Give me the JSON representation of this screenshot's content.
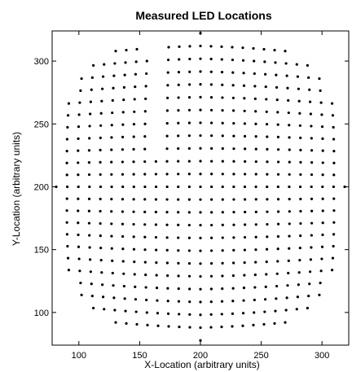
{
  "chart_data": {
    "type": "scatter",
    "title": "Measured LED Locations",
    "xlabel": "X-Location (arbitrary units)",
    "ylabel": "Y-Location (arbitrary units)",
    "xlim": [
      78,
      322
    ],
    "ylim": [
      74,
      324
    ],
    "xticks": [
      100,
      150,
      200,
      250,
      300
    ],
    "yticks": [
      100,
      150,
      200,
      250,
      300
    ],
    "grid": false,
    "legend": "none",
    "marker_color": "#000000",
    "description_of_points": "Grid of LED centroids forming a pillow/barrel-distorted square; columns spaced ~8.5 units, rows ~10 units; a small rectangular cluster of missing points near x=160..170, y=230..310.",
    "grid_model": {
      "center": [
        200,
        200
      ],
      "columns": 27,
      "rows": 25,
      "col_spacing": 8.6,
      "row_spacing": 10.0,
      "half_width": 116,
      "half_height": 124,
      "corner_rounding": 0.55,
      "gap": {
        "x": [
          156,
          172
        ],
        "y": [
          228,
          312
        ]
      }
    }
  }
}
